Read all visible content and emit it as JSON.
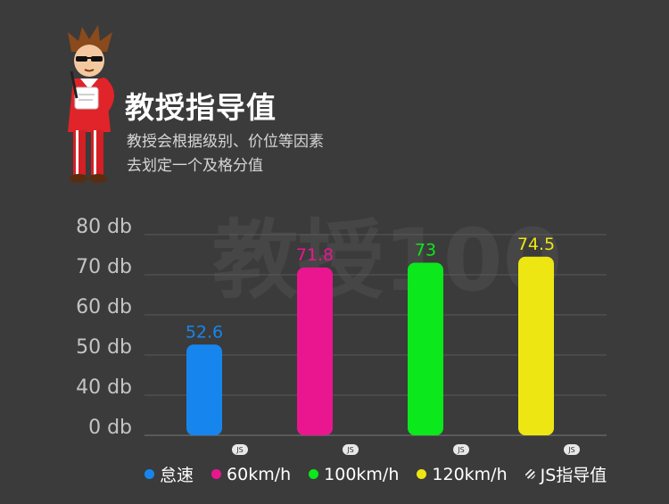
{
  "header": {
    "title": "教授指导值",
    "subtitle_lines": [
      "教授会根据级别、价位等因素",
      "去划定一个及格分值"
    ]
  },
  "watermark": {
    "text": "教授100"
  },
  "chart_data": {
    "type": "bar",
    "categories": [
      "怠速",
      "60km/h",
      "100km/h",
      "120km/h"
    ],
    "values": [
      52.6,
      71.8,
      73,
      74.5
    ],
    "value_labels": [
      "52.6",
      "71.8",
      "73",
      "74.5"
    ],
    "colors": [
      "#1686ee",
      "#ea1690",
      "#0be81b",
      "#eee612"
    ],
    "ylim": [
      0,
      80
    ],
    "yticks": [
      0,
      40,
      50,
      60,
      70,
      80
    ],
    "ytick_labels": [
      "0 db",
      "40 db",
      "50 db",
      "60 db",
      "70 db",
      "80 db"
    ],
    "axis_break": {
      "from": 0,
      "to": 40
    },
    "grid": true,
    "js_marker_label": "JS",
    "js_marker_color": "#e8e8e8",
    "legend_position": "bottom",
    "legend": [
      {
        "label": "怠速",
        "color": "#1686ee"
      },
      {
        "label": "60km/h",
        "color": "#ea1690"
      },
      {
        "label": "100km/h",
        "color": "#0be81b"
      },
      {
        "label": "120km/h",
        "color": "#eee612"
      },
      {
        "label": "JS指导值",
        "color": "#e8e8e8"
      }
    ]
  }
}
